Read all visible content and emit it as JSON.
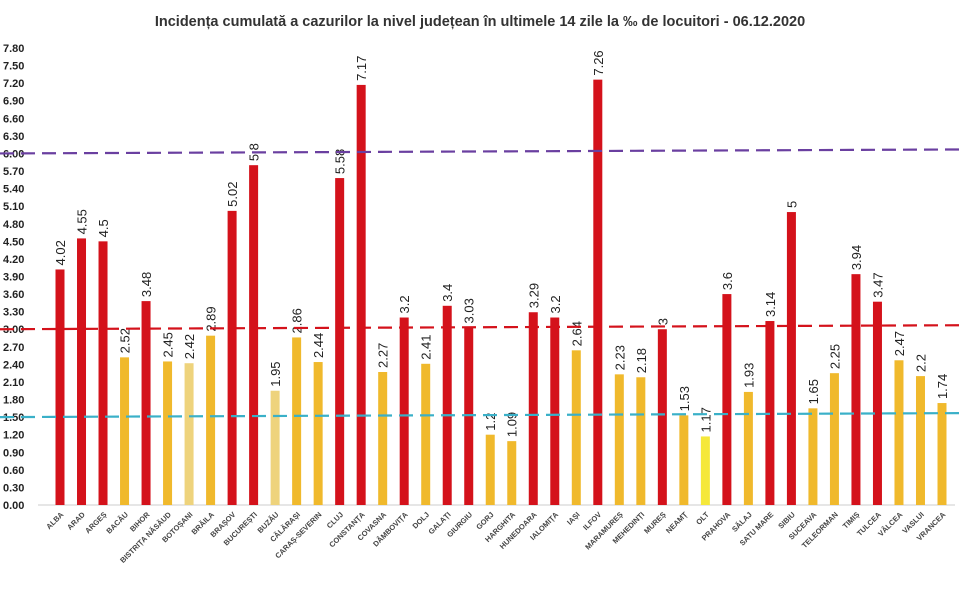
{
  "chart_data": {
    "type": "bar",
    "title": "Incidența cumulată a cazurilor la nivel județean în ultimele 14 zile la ‰ de locuitori - 06.12.2020",
    "xlabel": "",
    "ylabel": "",
    "ylim": [
      0,
      7.8
    ],
    "ytick_step": 0.3,
    "grid": false,
    "categories": [
      "ALBA",
      "ARAD",
      "ARGEȘ",
      "BACĂU",
      "BIHOR",
      "BISTRIȚA NĂSĂUD",
      "BOTOȘANI",
      "BRĂILA",
      "BRAȘOV",
      "BUCUREȘTI",
      "BUZĂU",
      "CĂLĂRAȘI",
      "CARAȘ-SEVERIN",
      "CLUJ",
      "CONSTANȚA",
      "COVASNA",
      "DÂMBOVIȚA",
      "DOLJ",
      "GALAȚI",
      "GIURGIU",
      "GORJ",
      "HARGHITA",
      "HUNEDOARA",
      "IALOMIȚA",
      "IAȘI",
      "ILFOV",
      "MARAMUREȘ",
      "MEHEDINȚI",
      "MUREȘ",
      "NEAMȚ",
      "OLT",
      "PRAHOVA",
      "SĂLAJ",
      "SATU MARE",
      "SIBIU",
      "SUCEAVA",
      "TELEORMAN",
      "TIMIȘ",
      "TULCEA",
      "VÂLCEA",
      "VASLUI",
      "VRANCEA"
    ],
    "values": [
      4.02,
      4.55,
      4.5,
      2.52,
      3.48,
      2.45,
      2.42,
      2.89,
      5.02,
      5.8,
      1.95,
      2.86,
      2.44,
      5.58,
      7.17,
      2.27,
      3.2,
      2.41,
      3.4,
      3.03,
      1.2,
      1.09,
      3.29,
      3.2,
      2.64,
      7.26,
      2.23,
      2.18,
      3,
      1.53,
      1.17,
      3.6,
      1.93,
      3.14,
      5,
      1.65,
      2.25,
      3.94,
      3.47,
      2.47,
      2.2,
      1.74
    ],
    "reference_lines": [
      {
        "value": 6.0,
        "color": "#6a3fa0",
        "style": "dashed"
      },
      {
        "value": 3.0,
        "color": "#d4121b",
        "style": "dashed"
      },
      {
        "value": 1.5,
        "color": "#3ab0c8",
        "style": "dashed"
      }
    ],
    "colors": {
      "above_3": "#d4121b",
      "between_1_5_and_3": "#f0b92c",
      "below_1_5": "#f3c93a",
      "olt": "#f5e83a",
      "pale": "#eed37c"
    }
  }
}
